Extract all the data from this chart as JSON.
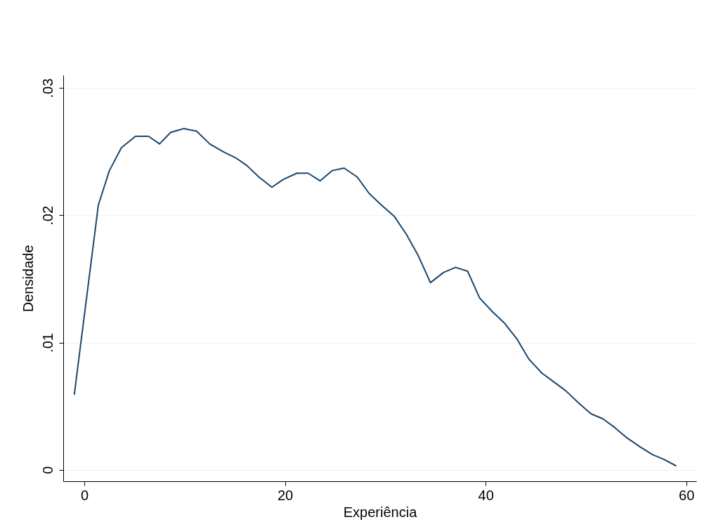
{
  "chart_data": {
    "type": "line",
    "xlabel": "Experiência",
    "ylabel": "Densidade",
    "x": [
      -1.0,
      1.4,
      2.5,
      3.7,
      5.1,
      6.4,
      7.5,
      8.6,
      9.9,
      11.2,
      12.5,
      13.8,
      15.1,
      16.2,
      17.4,
      18.7,
      19.8,
      21.2,
      22.3,
      23.5,
      24.7,
      25.9,
      27.2,
      28.4,
      29.6,
      30.9,
      32.1,
      33.3,
      34.5,
      35.8,
      37.0,
      38.2,
      39.4,
      40.7,
      41.9,
      43.1,
      44.3,
      45.6,
      46.8,
      48.0,
      49.2,
      50.5,
      51.7,
      52.9,
      54.1,
      55.4,
      56.6,
      57.8,
      59.0
    ],
    "series": [
      {
        "color": "#1a476f",
        "values": [
          0.0059,
          0.0208,
          0.0235,
          0.0253,
          0.0262,
          0.0262,
          0.0256,
          0.0265,
          0.0268,
          0.0266,
          0.0256,
          0.025,
          0.0245,
          0.0239,
          0.023,
          0.0222,
          0.0228,
          0.0233,
          0.0233,
          0.0227,
          0.0235,
          0.0237,
          0.023,
          0.0217,
          0.0208,
          0.0199,
          0.0185,
          0.0168,
          0.0147,
          0.0155,
          0.0159,
          0.0156,
          0.0135,
          0.0124,
          0.0115,
          0.0103,
          0.0087,
          0.0076,
          0.0069,
          0.0062,
          0.0053,
          0.0044,
          0.004,
          0.0033,
          0.0025,
          0.0018,
          0.0012,
          0.0008,
          0.0003
        ]
      }
    ],
    "xlim": [
      -2.1,
      61
    ],
    "xticks": [
      0,
      20,
      40,
      60
    ],
    "ylim": [
      -0.0009,
      0.031
    ],
    "yticks": [
      {
        "value": 0,
        "label": "0"
      },
      {
        "value": 0.01,
        "label": ".01"
      },
      {
        "value": 0.02,
        "label": ".02"
      },
      {
        "value": 0.03,
        "label": ".03"
      }
    ],
    "grid": "y",
    "marker": "none",
    "line_style": "solid"
  }
}
